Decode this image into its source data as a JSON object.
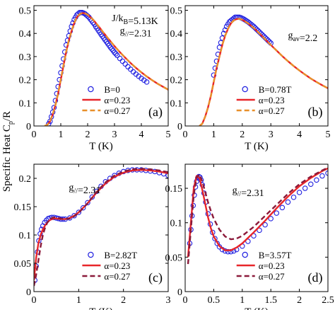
{
  "figure": {
    "ylabel": "Specific Heat C",
    "ylabel_sub": "p",
    "ylabel_tail": "/R"
  },
  "chart_data": [
    {
      "panel": "a",
      "type": "scatter",
      "xlabel": "T (K)",
      "xlim": [
        0,
        5
      ],
      "ylim": [
        0,
        0.52
      ],
      "xticks": [
        "0",
        "1",
        "2",
        "3",
        "4",
        "5"
      ],
      "yticks": [
        "0",
        "0.1",
        "0.2",
        "0.3",
        "0.4",
        "0.5"
      ],
      "xtick_values": [
        0,
        1,
        2,
        3,
        4,
        5
      ],
      "ytick_values": [
        0,
        0.1,
        0.2,
        0.3,
        0.4,
        0.5
      ],
      "panel_label": "(a)",
      "annotations": [
        "J/k",
        "B",
        "=5.13K",
        "g",
        "//",
        "=2.31"
      ],
      "legend_placement": "bottom-center",
      "series": [
        {
          "name": "B=0",
          "style": "marker",
          "color": "#2020e0",
          "x": [
            0.55,
            0.6,
            0.65,
            0.7,
            0.75,
            0.8,
            0.85,
            0.9,
            0.95,
            1.0,
            1.05,
            1.1,
            1.15,
            1.2,
            1.25,
            1.3,
            1.35,
            1.4,
            1.45,
            1.5,
            1.55,
            1.6,
            1.65,
            1.7,
            1.75,
            1.8,
            1.85,
            1.9,
            1.95,
            2.0,
            2.05,
            2.1,
            2.15,
            2.2,
            2.25,
            2.3,
            2.35,
            2.4,
            2.45,
            2.5,
            2.55,
            2.6,
            2.65,
            2.7,
            2.75,
            2.8,
            2.85,
            2.9,
            2.95,
            3.0,
            3.05,
            3.1,
            3.2,
            3.3,
            3.4,
            3.5,
            3.6,
            3.7,
            3.8,
            3.9,
            4.0,
            4.1,
            4.2
          ],
          "y": [
            0.01,
            0.02,
            0.04,
            0.06,
            0.08,
            0.11,
            0.14,
            0.17,
            0.2,
            0.23,
            0.26,
            0.29,
            0.32,
            0.35,
            0.37,
            0.39,
            0.41,
            0.43,
            0.445,
            0.46,
            0.47,
            0.48,
            0.485,
            0.49,
            0.49,
            0.49,
            0.488,
            0.485,
            0.48,
            0.475,
            0.47,
            0.462,
            0.455,
            0.447,
            0.44,
            0.43,
            0.422,
            0.413,
            0.405,
            0.396,
            0.388,
            0.38,
            0.372,
            0.364,
            0.356,
            0.348,
            0.34,
            0.333,
            0.326,
            0.318,
            0.312,
            0.305,
            0.292,
            0.28,
            0.268,
            0.256,
            0.245,
            0.234,
            0.224,
            0.215,
            0.206,
            0.198,
            0.19
          ]
        },
        {
          "name": "α=0.23",
          "style": "solid",
          "color": "#e8262a",
          "x": [
            0.4,
            0.5,
            0.6,
            0.7,
            0.8,
            0.9,
            1.0,
            1.1,
            1.2,
            1.3,
            1.4,
            1.5,
            1.6,
            1.7,
            1.8,
            1.9,
            2.0,
            2.2,
            2.4,
            2.6,
            2.8,
            3.0,
            3.2,
            3.4,
            3.6,
            3.8,
            4.0,
            4.2,
            4.4,
            4.6,
            4.8,
            5.0
          ],
          "y": [
            0.0,
            0.005,
            0.02,
            0.05,
            0.09,
            0.14,
            0.2,
            0.26,
            0.32,
            0.37,
            0.41,
            0.445,
            0.47,
            0.483,
            0.488,
            0.487,
            0.481,
            0.46,
            0.432,
            0.402,
            0.373,
            0.345,
            0.319,
            0.295,
            0.272,
            0.251,
            0.232,
            0.214,
            0.198,
            0.183,
            0.17,
            0.157
          ]
        },
        {
          "name": "α=0.27",
          "style": "dashed",
          "color": "#e8902a",
          "x": [
            0.4,
            0.5,
            0.6,
            0.7,
            0.8,
            0.9,
            1.0,
            1.1,
            1.2,
            1.3,
            1.4,
            1.5,
            1.6,
            1.7,
            1.8,
            1.9,
            2.0,
            2.2,
            2.4,
            2.6,
            2.8,
            3.0,
            3.2,
            3.4,
            3.6,
            3.8,
            4.0,
            4.2,
            4.4,
            4.6,
            4.8,
            5.0
          ],
          "y": [
            0.0,
            0.005,
            0.02,
            0.05,
            0.09,
            0.14,
            0.2,
            0.26,
            0.32,
            0.37,
            0.41,
            0.445,
            0.47,
            0.483,
            0.488,
            0.487,
            0.481,
            0.46,
            0.432,
            0.402,
            0.373,
            0.345,
            0.319,
            0.295,
            0.272,
            0.251,
            0.232,
            0.214,
            0.198,
            0.183,
            0.17,
            0.157
          ]
        }
      ]
    },
    {
      "panel": "b",
      "type": "scatter",
      "xlabel": "T (K)",
      "xlim": [
        0,
        5
      ],
      "ylim": [
        0,
        0.52
      ],
      "xticks": [
        "0",
        "1",
        "2",
        "3",
        "4",
        "5"
      ],
      "yticks": [
        "0",
        "0.1",
        "0.2",
        "0.3",
        "0.4",
        "0.5"
      ],
      "xtick_values": [
        0,
        1,
        2,
        3,
        4,
        5
      ],
      "ytick_values": [
        0,
        0.1,
        0.2,
        0.3,
        0.4,
        0.5
      ],
      "panel_label": "(b)",
      "annotations": [
        "g",
        "av",
        "=2.2"
      ],
      "legend_placement": "bottom-center",
      "series": [
        {
          "name": "B=0.78T",
          "style": "marker",
          "color": "#2020e0",
          "x": [
            1.0,
            1.05,
            1.1,
            1.15,
            1.2,
            1.25,
            1.3,
            1.35,
            1.4,
            1.45,
            1.5,
            1.55,
            1.6,
            1.65,
            1.7,
            1.75,
            1.8,
            1.85,
            1.9,
            1.95,
            2.0,
            2.05,
            2.1,
            2.15,
            2.2,
            2.25,
            2.3,
            2.35,
            2.4,
            2.45,
            2.5,
            2.55,
            2.6,
            2.65,
            2.7,
            2.75,
            2.8,
            2.85,
            2.9,
            2.95,
            3.0
          ],
          "y": [
            0.22,
            0.25,
            0.28,
            0.31,
            0.34,
            0.36,
            0.38,
            0.4,
            0.415,
            0.43,
            0.44,
            0.45,
            0.455,
            0.46,
            0.465,
            0.47,
            0.47,
            0.47,
            0.47,
            0.468,
            0.465,
            0.462,
            0.458,
            0.454,
            0.45,
            0.445,
            0.44,
            0.435,
            0.43,
            0.424,
            0.418,
            0.412,
            0.406,
            0.4,
            0.394,
            0.388,
            0.382,
            0.376,
            0.37,
            0.364,
            0.358
          ]
        },
        {
          "name": "α=0.23",
          "style": "solid",
          "color": "#e8262a",
          "x": [
            0.5,
            0.6,
            0.7,
            0.8,
            0.9,
            1.0,
            1.1,
            1.2,
            1.3,
            1.4,
            1.5,
            1.6,
            1.7,
            1.8,
            1.9,
            2.0,
            2.2,
            2.4,
            2.6,
            2.8,
            3.0,
            3.2,
            3.4,
            3.6,
            3.8,
            4.0,
            4.2,
            4.4,
            4.6,
            4.8,
            5.0
          ],
          "y": [
            0.0,
            0.01,
            0.04,
            0.08,
            0.13,
            0.19,
            0.25,
            0.3,
            0.35,
            0.39,
            0.42,
            0.443,
            0.456,
            0.462,
            0.463,
            0.459,
            0.444,
            0.424,
            0.4,
            0.375,
            0.35,
            0.326,
            0.302,
            0.28,
            0.259,
            0.24,
            0.222,
            0.205,
            0.19,
            0.176,
            0.163
          ]
        },
        {
          "name": "α=0.27",
          "style": "dashed",
          "color": "#e8902a",
          "x": [
            0.5,
            0.6,
            0.7,
            0.8,
            0.9,
            1.0,
            1.1,
            1.2,
            1.3,
            1.4,
            1.5,
            1.6,
            1.7,
            1.8,
            1.9,
            2.0,
            2.2,
            2.4,
            2.6,
            2.8,
            3.0,
            3.2,
            3.4,
            3.6,
            3.8,
            4.0,
            4.2,
            4.4,
            4.6,
            4.8,
            5.0
          ],
          "y": [
            0.0,
            0.01,
            0.04,
            0.08,
            0.13,
            0.19,
            0.25,
            0.3,
            0.35,
            0.39,
            0.42,
            0.443,
            0.456,
            0.462,
            0.463,
            0.459,
            0.444,
            0.424,
            0.4,
            0.375,
            0.35,
            0.326,
            0.302,
            0.28,
            0.259,
            0.24,
            0.222,
            0.205,
            0.19,
            0.176,
            0.163
          ]
        }
      ]
    },
    {
      "panel": "c",
      "type": "scatter",
      "xlabel": "T (K)",
      "xlim": [
        0,
        3
      ],
      "ylim": [
        0,
        0.225
      ],
      "xticks": [
        "0",
        "1",
        "2",
        "3"
      ],
      "yticks": [
        "0",
        "0.05",
        "0.1",
        "0.15",
        "0.2"
      ],
      "xtick_values": [
        0,
        1,
        2,
        3
      ],
      "ytick_values": [
        0,
        0.05,
        0.1,
        0.15,
        0.2
      ],
      "panel_label": "(c)",
      "annotations": [
        "g",
        "//",
        "=2.31"
      ],
      "legend_placement": "bottom-center",
      "series": [
        {
          "name": "B=2.82T",
          "style": "marker",
          "color": "#2020e0",
          "x": [
            0.02,
            0.05,
            0.08,
            0.11,
            0.14,
            0.17,
            0.2,
            0.24,
            0.28,
            0.32,
            0.36,
            0.4,
            0.45,
            0.5,
            0.55,
            0.6,
            0.65,
            0.7,
            0.8,
            0.9,
            1.0,
            1.1,
            1.2,
            1.3,
            1.4,
            1.5,
            1.6,
            1.7,
            1.8,
            1.9,
            2.0,
            2.1,
            2.2,
            2.3,
            2.4,
            2.5,
            2.6,
            2.7,
            2.8,
            2.9,
            3.0
          ],
          "y": [
            0.02,
            0.045,
            0.07,
            0.09,
            0.102,
            0.11,
            0.116,
            0.122,
            0.126,
            0.129,
            0.13,
            0.131,
            0.131,
            0.13,
            0.129,
            0.128,
            0.128,
            0.128,
            0.13,
            0.134,
            0.14,
            0.148,
            0.157,
            0.167,
            0.177,
            0.186,
            0.194,
            0.2,
            0.205,
            0.209,
            0.212,
            0.214,
            0.215,
            0.215,
            0.215,
            0.214,
            0.213,
            0.212,
            0.21,
            0.208,
            0.205
          ]
        },
        {
          "name": "α=0.23",
          "style": "solid",
          "color": "#e8262a",
          "x": [
            0.0,
            0.05,
            0.1,
            0.15,
            0.2,
            0.25,
            0.3,
            0.35,
            0.4,
            0.45,
            0.5,
            0.6,
            0.7,
            0.8,
            0.9,
            1.0,
            1.2,
            1.4,
            1.6,
            1.8,
            2.0,
            2.2,
            2.4,
            2.6,
            2.8,
            3.0
          ],
          "y": [
            0.02,
            0.06,
            0.085,
            0.1,
            0.11,
            0.117,
            0.122,
            0.126,
            0.128,
            0.129,
            0.129,
            0.128,
            0.128,
            0.13,
            0.134,
            0.14,
            0.156,
            0.175,
            0.191,
            0.203,
            0.21,
            0.214,
            0.215,
            0.214,
            0.212,
            0.209
          ]
        },
        {
          "name": "α=0.27",
          "style": "dashed",
          "color": "#8b1a3a",
          "x": [
            0.0,
            0.05,
            0.1,
            0.15,
            0.2,
            0.25,
            0.3,
            0.35,
            0.4,
            0.45,
            0.5,
            0.6,
            0.7,
            0.8,
            0.9,
            1.0,
            1.2,
            1.4,
            1.6,
            1.8,
            2.0,
            2.2,
            2.4,
            2.6,
            2.8,
            3.0
          ],
          "y": [
            0.01,
            0.03,
            0.055,
            0.08,
            0.1,
            0.113,
            0.122,
            0.127,
            0.13,
            0.131,
            0.131,
            0.129,
            0.128,
            0.129,
            0.133,
            0.139,
            0.156,
            0.176,
            0.193,
            0.205,
            0.212,
            0.216,
            0.217,
            0.216,
            0.214,
            0.211
          ]
        }
      ]
    },
    {
      "panel": "d",
      "type": "scatter",
      "xlabel": "T (K)",
      "xlim": [
        0,
        2.5
      ],
      "ylim": [
        0,
        0.185
      ],
      "xticks": [
        "0",
        "0.5",
        "1",
        "1.5",
        "2",
        "2.5"
      ],
      "yticks": [
        "0",
        "0.05",
        "0.1",
        "0.15"
      ],
      "xtick_values": [
        0,
        0.5,
        1,
        1.5,
        2,
        2.5
      ],
      "ytick_values": [
        0,
        0.05,
        0.1,
        0.15
      ],
      "panel_label": "(d)",
      "annotations": [
        "g",
        "//",
        "=2.31"
      ],
      "legend_placement": "bottom-center",
      "series": [
        {
          "name": "B=3.57T",
          "style": "marker",
          "color": "#2020e0",
          "x": [
            0.08,
            0.1,
            0.12,
            0.14,
            0.16,
            0.18,
            0.2,
            0.22,
            0.24,
            0.26,
            0.28,
            0.3,
            0.33,
            0.36,
            0.4,
            0.44,
            0.48,
            0.52,
            0.56,
            0.6,
            0.65,
            0.7,
            0.75,
            0.8,
            0.85,
            0.9,
            1.0,
            1.1,
            1.2,
            1.3,
            1.4,
            1.5,
            1.6,
            1.7,
            1.8,
            1.9,
            2.0,
            2.1,
            2.2,
            2.3,
            2.4,
            2.5
          ],
          "y": [
            0.07,
            0.09,
            0.11,
            0.125,
            0.14,
            0.152,
            0.16,
            0.165,
            0.167,
            0.166,
            0.162,
            0.155,
            0.143,
            0.13,
            0.113,
            0.098,
            0.086,
            0.077,
            0.07,
            0.065,
            0.061,
            0.059,
            0.058,
            0.058,
            0.059,
            0.061,
            0.066,
            0.073,
            0.081,
            0.089,
            0.097,
            0.106,
            0.114,
            0.122,
            0.13,
            0.137,
            0.144,
            0.15,
            0.156,
            0.162,
            0.168,
            0.172
          ]
        },
        {
          "name": "α=0.23",
          "style": "solid",
          "color": "#e8262a",
          "x": [
            0.05,
            0.1,
            0.15,
            0.2,
            0.25,
            0.3,
            0.35,
            0.4,
            0.45,
            0.5,
            0.6,
            0.7,
            0.8,
            0.9,
            1.0,
            1.2,
            1.4,
            1.6,
            1.8,
            2.0,
            2.2,
            2.4,
            2.5
          ],
          "y": [
            0.05,
            0.1,
            0.15,
            0.168,
            0.165,
            0.148,
            0.128,
            0.108,
            0.092,
            0.08,
            0.066,
            0.06,
            0.06,
            0.064,
            0.07,
            0.086,
            0.103,
            0.121,
            0.138,
            0.153,
            0.165,
            0.175,
            0.179
          ]
        },
        {
          "name": "α=0.27",
          "style": "dashed",
          "color": "#8b1a3a",
          "x": [
            0.05,
            0.1,
            0.15,
            0.2,
            0.25,
            0.3,
            0.35,
            0.4,
            0.45,
            0.5,
            0.6,
            0.7,
            0.8,
            0.9,
            1.0,
            1.2,
            1.4,
            1.6,
            1.8,
            2.0,
            2.2,
            2.4,
            2.5
          ],
          "y": [
            0.04,
            0.09,
            0.14,
            0.166,
            0.17,
            0.16,
            0.145,
            0.13,
            0.117,
            0.106,
            0.09,
            0.08,
            0.076,
            0.077,
            0.081,
            0.094,
            0.11,
            0.126,
            0.142,
            0.156,
            0.167,
            0.176,
            0.18
          ]
        }
      ]
    }
  ]
}
